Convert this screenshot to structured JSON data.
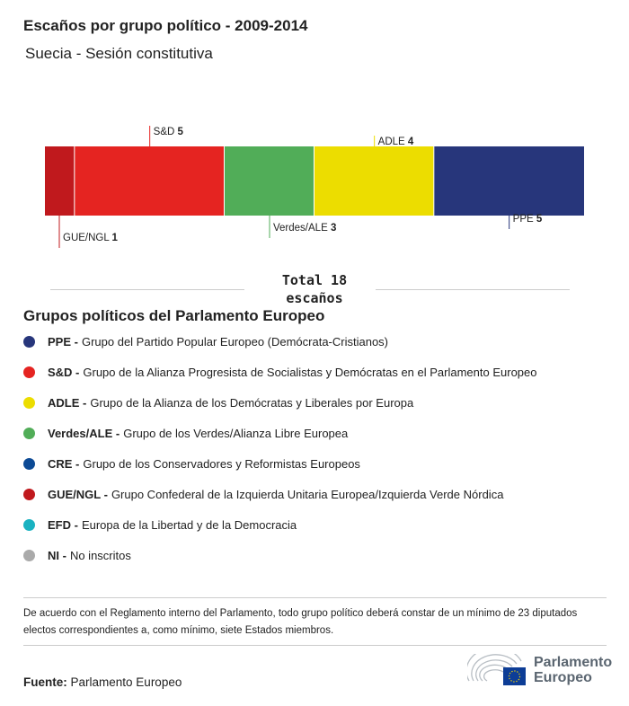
{
  "title": "Escaños por grupo político - 2009-2014",
  "subtitle": "Suecia - Sesión constitutiva",
  "chart_data": {
    "type": "bar",
    "stacked": true,
    "orientation": "horizontal",
    "total": 18,
    "categories": [
      "GUE/NGL",
      "S&D",
      "Verdes/ALE",
      "ADLE",
      "PPE"
    ],
    "values": [
      1,
      5,
      3,
      4,
      5
    ],
    "colors": [
      "#c0191d",
      "#e52421",
      "#51ad58",
      "#ecdd00",
      "#27367b"
    ],
    "label_side": [
      "below",
      "above",
      "below",
      "above",
      "below"
    ]
  },
  "total_line1": "Total 18",
  "total_line2": "escaños",
  "legend": {
    "title": "Grupos políticos del Parlamento Europeo",
    "items": [
      {
        "abbr": "PPE -",
        "name": "Grupo del Partido Popular Europeo (Demócrata-Cristianos)",
        "color": "#27367b"
      },
      {
        "abbr": "S&D -",
        "name": "Grupo de la Alianza Progresista de Socialistas y Demócratas en el Parlamento Europeo",
        "color": "#e52421"
      },
      {
        "abbr": "ADLE -",
        "name": "Grupo de la Alianza de los Demócratas y Liberales por Europa",
        "color": "#ecdd00"
      },
      {
        "abbr": "Verdes/ALE -",
        "name": "Grupo de los Verdes/Alianza Libre Europea",
        "color": "#51ad58"
      },
      {
        "abbr": "CRE -",
        "name": "Grupo de los Conservadores y Reformistas Europeos",
        "color": "#0c4a95"
      },
      {
        "abbr": "GUE/NGL -",
        "name": "Grupo Confederal de la Izquierda Unitaria Europea/Izquierda Verde Nórdica",
        "color": "#c0191d"
      },
      {
        "abbr": "EFD -",
        "name": "Europa de la Libertad y de la Democracia",
        "color": "#1ab2c1"
      },
      {
        "abbr": "NI -",
        "name": "No inscritos",
        "color": "#aaaaaa"
      }
    ]
  },
  "note": "De acuerdo con el Reglamento interno del Parlamento, todo grupo político deberá constar de un mínimo de 23 diputados electos correspondientes a, como mínimo, siete Estados miembros.",
  "source_label": "Fuente:",
  "source": "Parlamento Europeo",
  "logo": {
    "line1": "Parlamento",
    "line2": "Europeo"
  }
}
